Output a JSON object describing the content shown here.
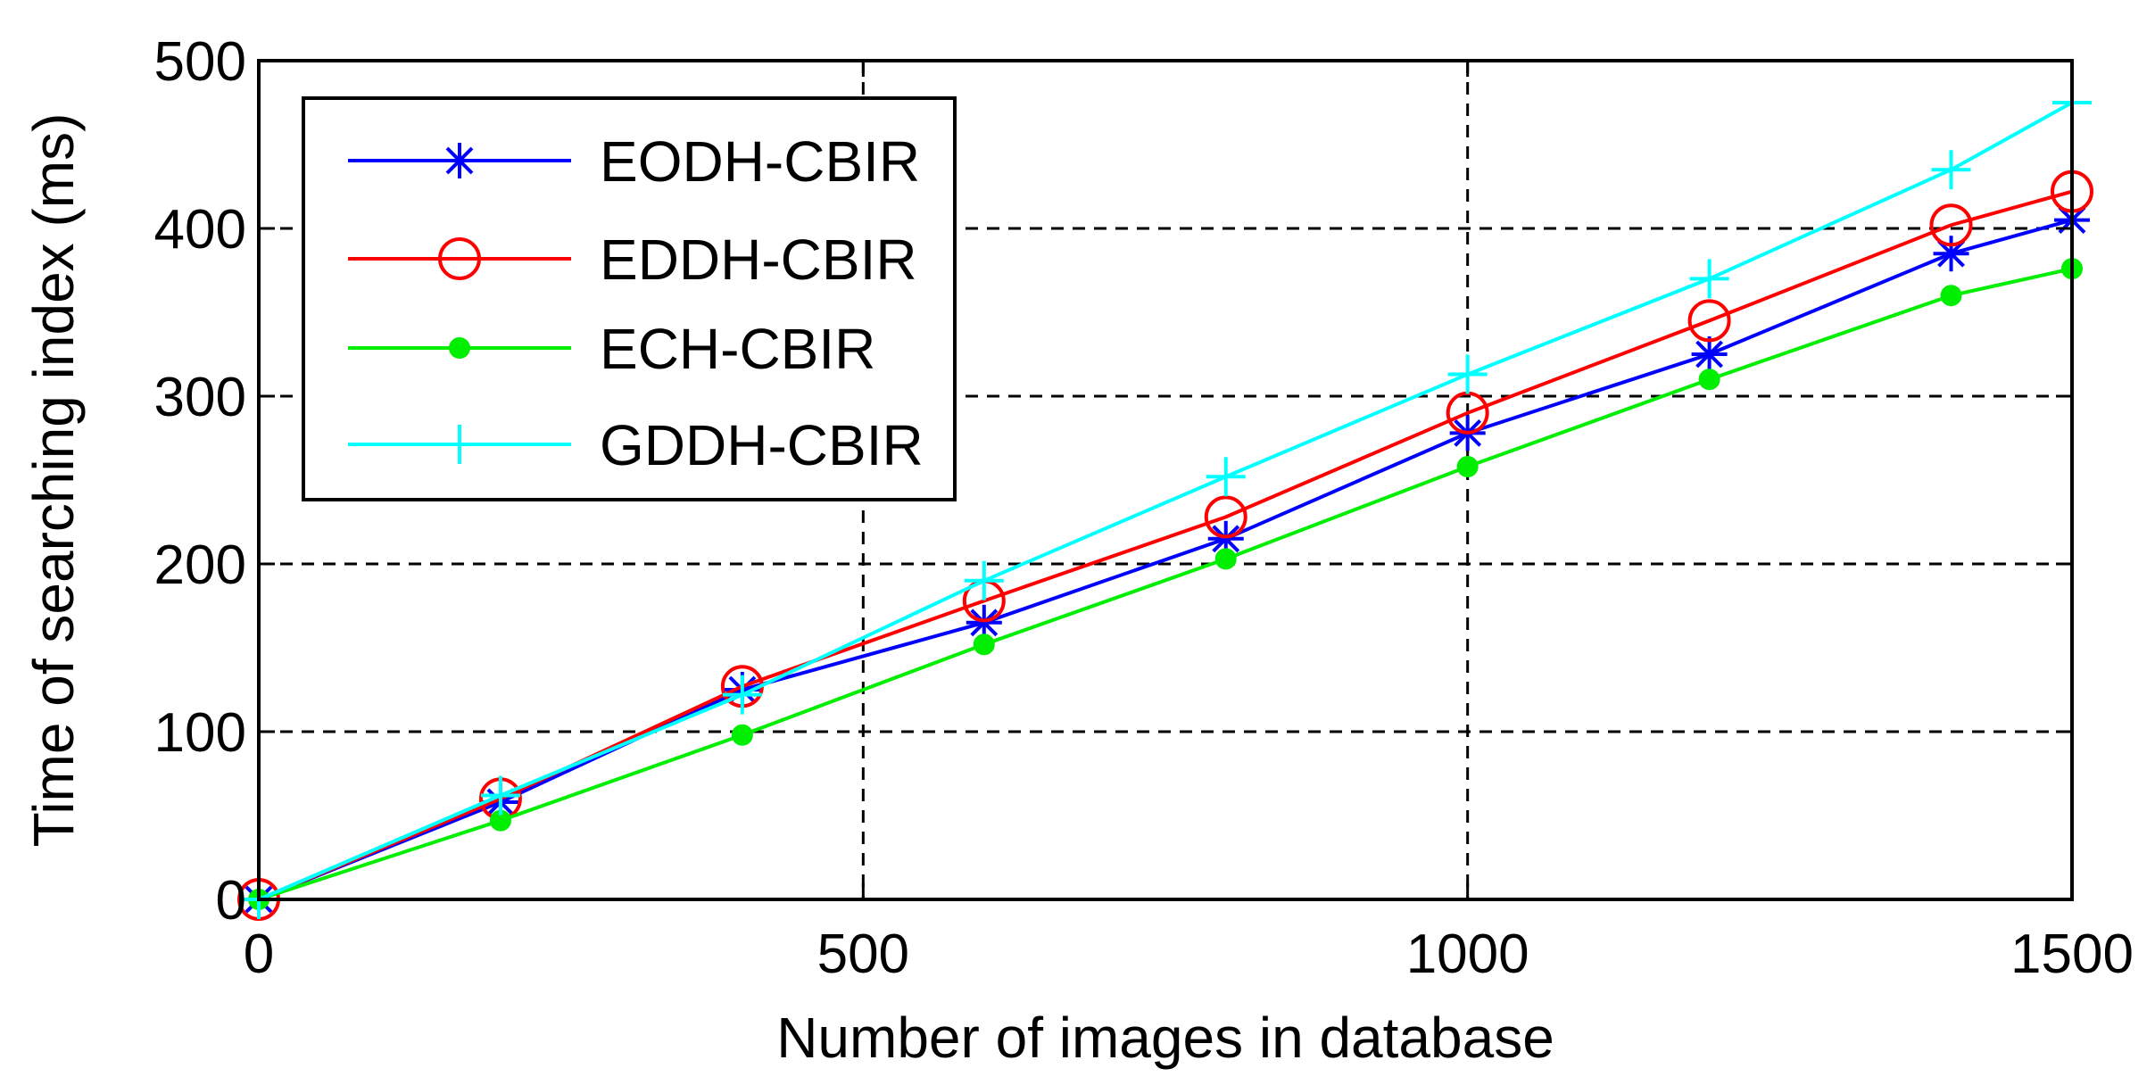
{
  "chart_data": {
    "type": "line",
    "title": "",
    "xlabel": "Number of images in database",
    "ylabel": "Time of searching index (ms)",
    "xlim": [
      0,
      1500
    ],
    "ylim": [
      0,
      500
    ],
    "xticks": [
      "0",
      "500",
      "1000",
      "1500"
    ],
    "yticks": [
      "0",
      "100",
      "200",
      "300",
      "400",
      "500"
    ],
    "grid": true,
    "legend_position": "top-left",
    "x": [
      0,
      200,
      400,
      600,
      800,
      1000,
      1200,
      1400,
      1500
    ],
    "series": [
      {
        "name": "EODH-CBIR",
        "color": "#0000ff",
        "marker": "asterisk",
        "values": [
          0,
          58,
          125,
          165,
          215,
          278,
          325,
          385,
          405
        ]
      },
      {
        "name": "EDDH-CBIR",
        "color": "#ff0000",
        "marker": "circle",
        "values": [
          0,
          60,
          127,
          178,
          228,
          290,
          345,
          402,
          422
        ]
      },
      {
        "name": "ECH-CBIR",
        "color": "#00ee00",
        "marker": "dot",
        "values": [
          0,
          47,
          98,
          152,
          203,
          258,
          310,
          360,
          376
        ]
      },
      {
        "name": "GDDH-CBIR",
        "color": "#00ffff",
        "marker": "plus",
        "values": [
          0,
          62,
          122,
          190,
          252,
          313,
          370,
          435,
          475
        ]
      }
    ]
  }
}
